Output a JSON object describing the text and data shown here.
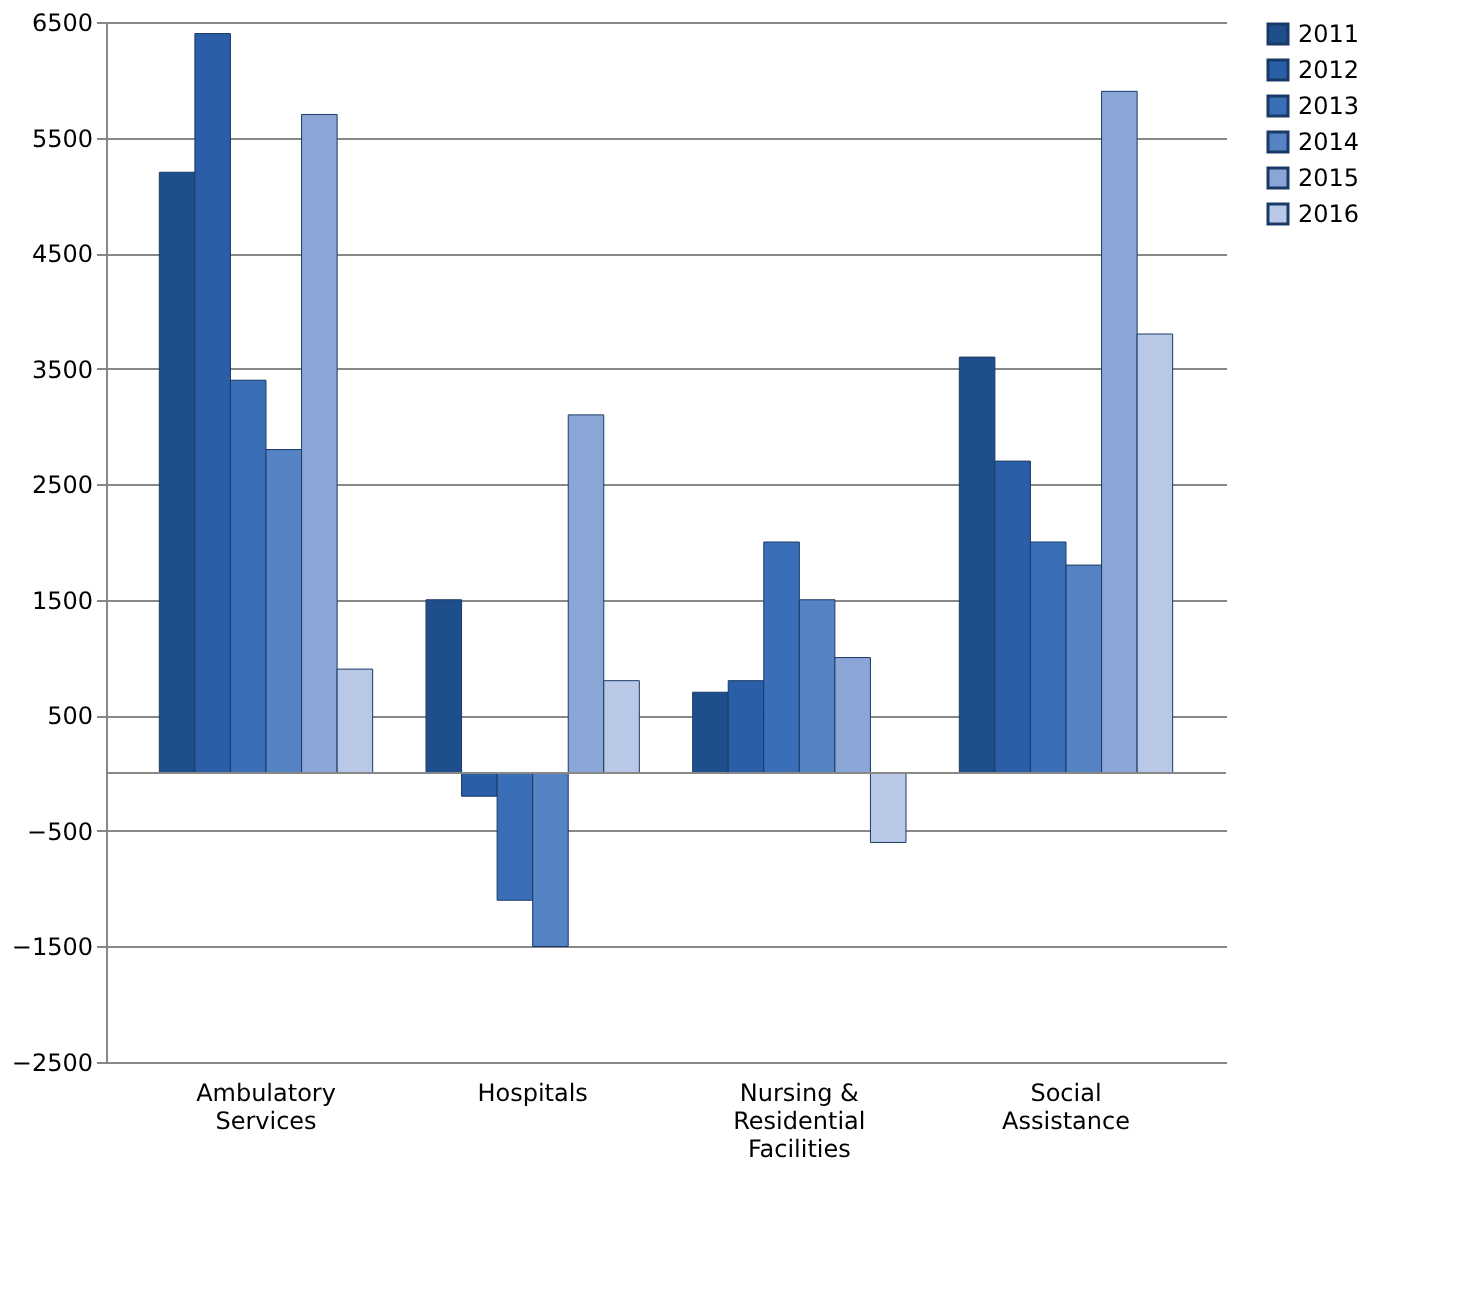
{
  "chart_data": {
    "type": "bar",
    "categories": [
      "Ambulatory\nServices",
      "Hospitals",
      "Nursing &\nResidential\nFacilities",
      "Social\nAssistance"
    ],
    "series": [
      {
        "name": "2011",
        "color": "#1f4e8c",
        "values": [
          5200,
          1500,
          700,
          3600
        ]
      },
      {
        "name": "2012",
        "color": "#2a5fa8",
        "values": [
          6400,
          -200,
          800,
          2700
        ]
      },
      {
        "name": "2013",
        "color": "#3a6fb8",
        "values": [
          3400,
          -1100,
          2000,
          2000
        ]
      },
      {
        "name": "2014",
        "color": "#5583c4",
        "values": [
          2800,
          -1500,
          1500,
          1800
        ]
      },
      {
        "name": "2015",
        "color": "#8aa6d6",
        "values": [
          5700,
          3100,
          1000,
          5900
        ]
      },
      {
        "name": "2016",
        "color": "#b8c8e6",
        "values": [
          900,
          800,
          -600,
          3800
        ]
      }
    ],
    "ylim": [
      -2500,
      6500
    ],
    "yticks": [
      -2500,
      -1500,
      -500,
      500,
      1500,
      2500,
      3500,
      4500,
      5500,
      6500
    ],
    "grid": "y",
    "legend": "right"
  }
}
